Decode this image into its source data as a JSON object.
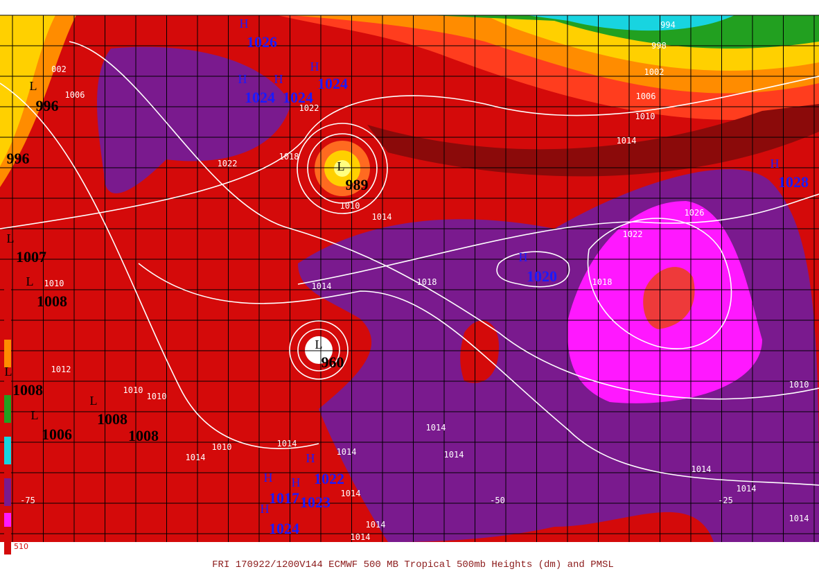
{
  "caption": "FRI 170922/1200V144  ECMWF  500 MB Tropical 500mb Heights (dm) and PMSL",
  "centers": [
    {
      "letter": "H",
      "value": "1026"
    },
    {
      "letter": "H",
      "value": "1024"
    },
    {
      "letter": "H",
      "value": "1024"
    },
    {
      "letter": "H",
      "value": "1024"
    },
    {
      "letter": "L",
      "value": "996"
    },
    {
      "letter": "L",
      "value": "989"
    },
    {
      "letter": "H",
      "value": "1028"
    },
    {
      "letter": "H",
      "value": "1020"
    },
    {
      "letter": "L",
      "value": "1007"
    },
    {
      "letter": "L",
      "value": "1008"
    },
    {
      "letter": "L",
      "value": "960"
    },
    {
      "letter": "L",
      "value": "1008"
    },
    {
      "letter": "L",
      "value": "1006"
    },
    {
      "letter": "L",
      "value": "1008"
    },
    {
      "letter": "H",
      "value": "1022"
    },
    {
      "letter": "H",
      "value": "1017"
    },
    {
      "letter": "H",
      "value": "1023"
    },
    {
      "letter": "H",
      "value": "1024"
    }
  ],
  "extra_values": [
    "996",
    "1008"
  ],
  "isobar_labels": [
    "002",
    "1006",
    "1022",
    "1018",
    "1022",
    "1010",
    "1014",
    "994",
    "998",
    "1002",
    "1006",
    "1010",
    "1014",
    "1026",
    "1022",
    "1018",
    "1018",
    "1014",
    "1010",
    "1010",
    "1010",
    "1014",
    "1014",
    "1010",
    "1014",
    "1014",
    "1014",
    "1014",
    "1014",
    "1014",
    "1014",
    "1014",
    "1014",
    "1010",
    "1012"
  ],
  "axis_labels": [
    "-75",
    "-50",
    "-25"
  ],
  "colorbar_labels": [
    "510"
  ]
}
